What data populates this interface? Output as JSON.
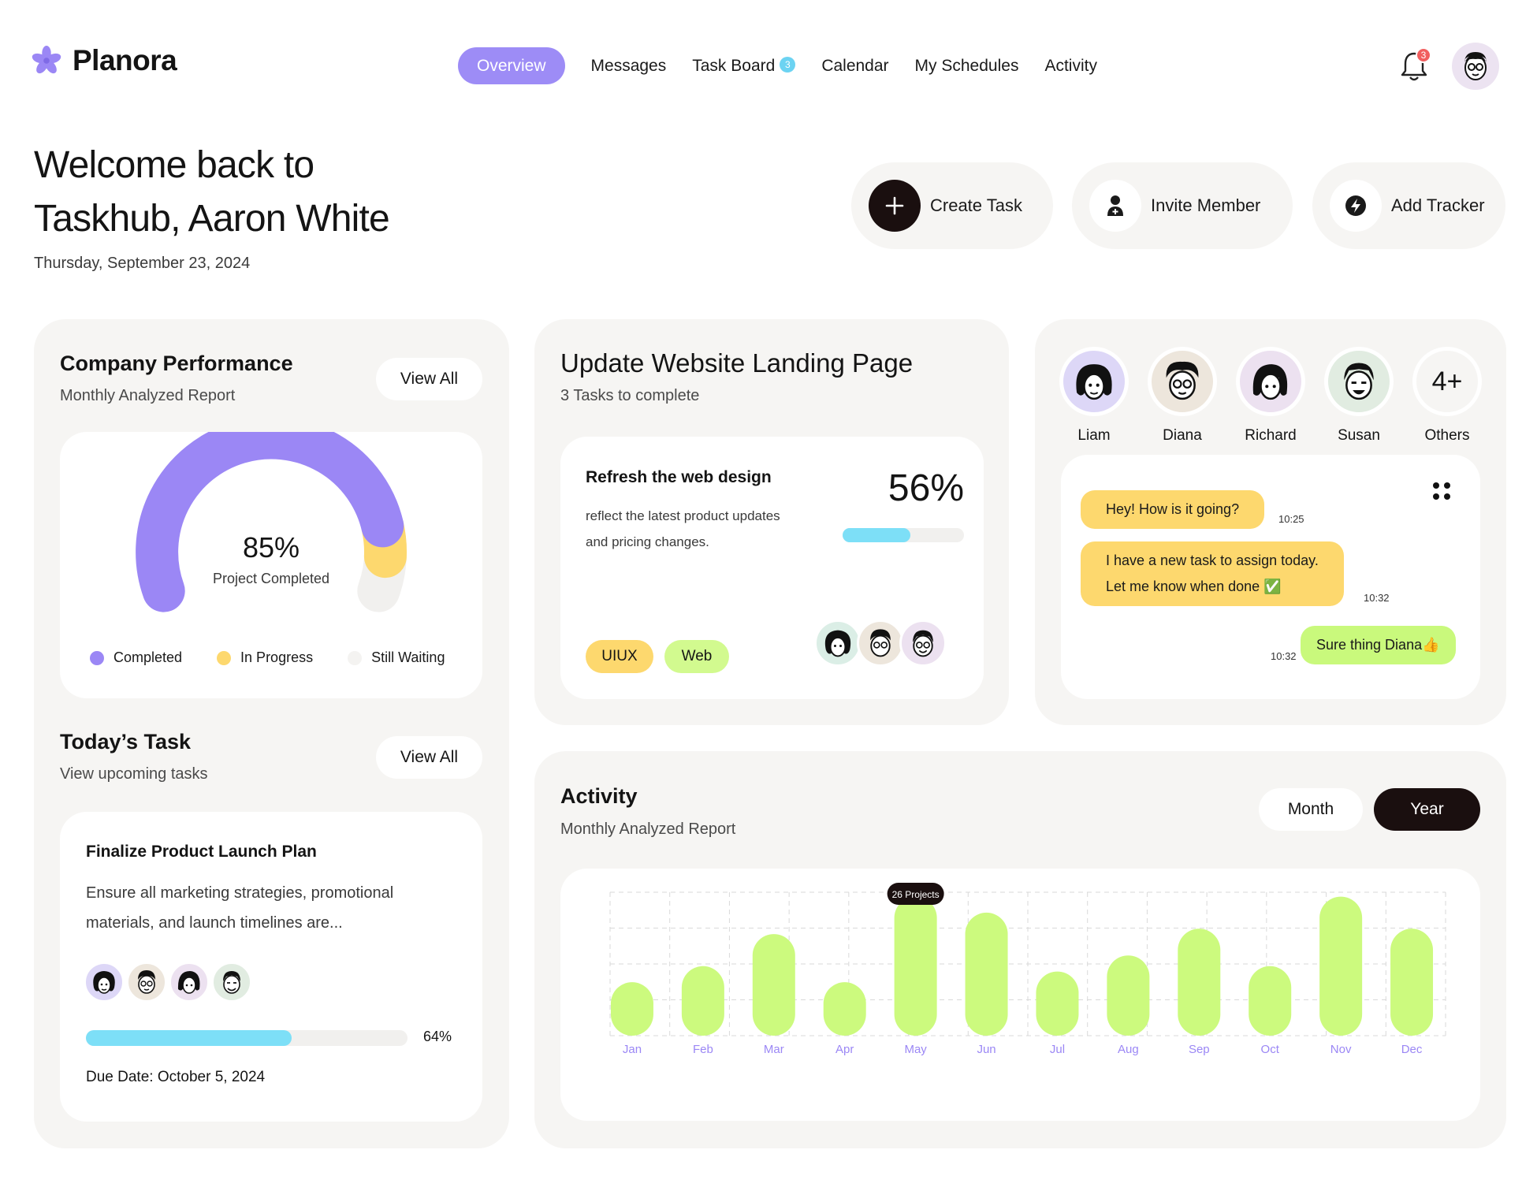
{
  "app": {
    "name": "Planora"
  },
  "nav": {
    "items": [
      {
        "label": "Overview",
        "active": true
      },
      {
        "label": "Messages"
      },
      {
        "label": "Task Board",
        "badge": "3"
      },
      {
        "label": "Calendar"
      },
      {
        "label": "My Schedules"
      },
      {
        "label": "Activity"
      }
    ],
    "notification_count": "3"
  },
  "hero": {
    "welcome_line1": "Welcome back to",
    "welcome_line2": "Taskhub, Aaron White",
    "date": "Thursday, September 23, 2024"
  },
  "actions": {
    "create": "Create Task",
    "invite": "Invite Member",
    "tracker": "Add Tracker"
  },
  "performance": {
    "title": "Company Performance",
    "subtitle": "Monthly Analyzed Report",
    "view_all": "View All",
    "percent": "85%",
    "caption": "Project Completed",
    "completed_fraction": 0.85,
    "in_progress_fraction": 0.07,
    "legend": [
      "Completed",
      "In Progress",
      "Still Waiting"
    ],
    "colors": {
      "completed": "#9b87f5",
      "in_progress": "#fdd86e",
      "waiting": "#f1f0ee"
    }
  },
  "today": {
    "title": "Today’s Task",
    "subtitle": "View upcoming tasks",
    "view_all": "View All",
    "task_title": "Finalize Product Launch Plan",
    "task_desc_1": "Ensure all marketing strategies, promotional",
    "task_desc_2": "materials, and launch timelines are...",
    "progress_label": "64%",
    "progress_value": 0.64,
    "due": "Due Date: October 5, 2024"
  },
  "project": {
    "title": "Update Website Landing Page",
    "subtitle": "3 Tasks to complete",
    "task_title": "Refresh the web design",
    "task_desc_1": "reflect the latest product updates",
    "task_desc_2": "and pricing changes.",
    "percent": "56%",
    "progress_value": 0.56,
    "tags": [
      "UIUX",
      "Web"
    ]
  },
  "team": {
    "members": [
      "Liam",
      "Diana",
      "Richard",
      "Susan"
    ],
    "others_count": "4+",
    "others_label": "Others"
  },
  "chat": {
    "messages": [
      {
        "text": "Hey! How is it going?",
        "time": "10:25"
      },
      {
        "line1": "I have a new task to assign today.",
        "line2": "Let me know when done ✅",
        "time": "10:32"
      },
      {
        "text": "Sure thing Diana👍",
        "time": "10:32"
      }
    ]
  },
  "activity": {
    "title": "Activity",
    "subtitle": "Monthly Analyzed Report",
    "toggle": [
      "Month",
      "Year"
    ],
    "active_toggle": "Year",
    "tooltip": "26 Projects"
  },
  "chart_data": {
    "type": "bar",
    "categories": [
      "Jan",
      "Feb",
      "Mar",
      "Apr",
      "May",
      "Jun",
      "Jul",
      "Aug",
      "Sep",
      "Oct",
      "Nov",
      "Dec"
    ],
    "values": [
      10,
      13,
      19,
      10,
      26,
      23,
      12,
      15,
      20,
      13,
      26,
      20
    ],
    "ylim": [
      0,
      28
    ],
    "grid": true,
    "highlight": {
      "category": "May",
      "label": "26 Projects"
    },
    "bar_color": "#ccfa7e",
    "tick_color": "#9b87f5"
  }
}
